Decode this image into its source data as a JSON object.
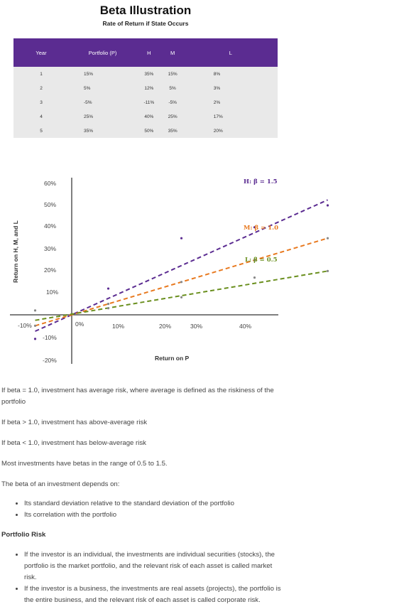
{
  "header": {
    "title": "Beta Illustration",
    "subtitle": "Rate of Return if State Occurs"
  },
  "table": {
    "columns": [
      "Year",
      "Portfolio (P)",
      "H",
      "M",
      "L"
    ],
    "rows": [
      [
        "1",
        "15%",
        "35%",
        "15%",
        "8%"
      ],
      [
        "2",
        "5%",
        "12%",
        "5%",
        "3%"
      ],
      [
        "3",
        "-5%",
        "-11%",
        "-5%",
        "2%"
      ],
      [
        "4",
        "25%",
        "40%",
        "25%",
        "17%"
      ],
      [
        "5",
        "35%",
        "50%",
        "35%",
        "20%"
      ]
    ]
  },
  "chart_data": {
    "type": "scatter",
    "xlabel": "Return on P",
    "ylabel": "Return on H, M, and L",
    "xlim": [
      -10,
      40
    ],
    "ylim": [
      -20,
      60
    ],
    "x_ticks": [
      "-10%",
      "0%",
      "10%",
      "20%",
      "30%",
      "40%"
    ],
    "y_ticks": [
      "60%",
      "50%",
      "40%",
      "30%",
      "20%",
      "10%",
      "-10%",
      "-20%"
    ],
    "series": [
      {
        "name": "H: β = 1.5",
        "color": "#5b2c91",
        "points": [
          [
            15,
            35
          ],
          [
            5,
            12
          ],
          [
            -5,
            -11
          ],
          [
            25,
            40
          ],
          [
            35,
            50
          ]
        ],
        "line": [
          [
            -5,
            -7.5
          ],
          [
            35,
            52.5
          ]
        ]
      },
      {
        "name": "M: β = 1.0",
        "color": "#e8791f",
        "points": [
          [
            15,
            15
          ],
          [
            5,
            5
          ],
          [
            -5,
            -5
          ],
          [
            25,
            25
          ],
          [
            35,
            35
          ]
        ],
        "line": [
          [
            -5,
            -5
          ],
          [
            35,
            35
          ]
        ]
      },
      {
        "name": "L: β = 0.5",
        "color": "#6a8f1e",
        "points": [
          [
            15,
            8
          ],
          [
            5,
            3
          ],
          [
            -5,
            2
          ],
          [
            25,
            17
          ],
          [
            35,
            20
          ]
        ],
        "line": [
          [
            -5,
            -2.5
          ],
          [
            35,
            20
          ]
        ]
      }
    ]
  },
  "text": {
    "p1": "If beta = 1.0, investment has average risk, where average is defined as the riskiness of the",
    "p1b": "portfolio",
    "p2": "If beta > 1.0, investment has above-average risk",
    "p3": "If beta < 1.0, investment has below-average risk",
    "p4": "Most investments have betas in the range of 0.5 to 1.5.",
    "p5": "The beta of an investment depends on:",
    "list1": [
      "Its standard deviation relative to the standard deviation of the portfolio",
      "Its correlation with the portfolio"
    ],
    "section_title": "Portfolio Risk",
    "list2": [
      [
        "If the investor is an individual, the investments are individual securities (stocks), the",
        "portfolio is the market portfolio, and the relevant risk of each asset is called market",
        "risk."
      ],
      [
        "If the investor is a business, the investments are real assets (projects), the portfolio is",
        "the entire business, and the relevant risk of each asset is called corporate risk."
      ]
    ]
  }
}
